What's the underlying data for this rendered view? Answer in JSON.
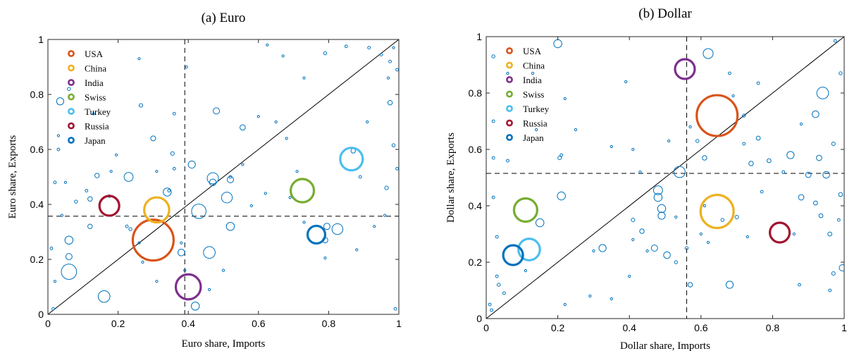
{
  "chart_data": [
    {
      "type": "scatter",
      "title": "(a) Euro",
      "xlabel": "Euro share, Imports",
      "ylabel": "Euro share, Exports",
      "xlim": [
        0,
        1
      ],
      "ylim": [
        0,
        1
      ],
      "xticks": [
        "0",
        "0.2",
        "0.4",
        "0.6",
        "0.8",
        "1"
      ],
      "yticks": [
        "0",
        "0.2",
        "0.4",
        "0.6",
        "0.8",
        "1"
      ],
      "ref_lines": {
        "vertical": 0.39,
        "horizontal": 0.357,
        "diagonal": true
      },
      "legend_placement": "top-left",
      "highlighted": [
        {
          "name": "USA",
          "color": "#D95319",
          "x": 0.3,
          "y": 0.27,
          "size": 1.0
        },
        {
          "name": "China",
          "color": "#EDB120",
          "x": 0.31,
          "y": 0.38,
          "size": 0.55
        },
        {
          "name": "India",
          "color": "#7E2F8E",
          "x": 0.4,
          "y": 0.1,
          "size": 0.55
        },
        {
          "name": "Swiss",
          "color": "#77AC30",
          "x": 0.725,
          "y": 0.45,
          "size": 0.5
        },
        {
          "name": "Turkey",
          "color": "#4DBEEE",
          "x": 0.865,
          "y": 0.565,
          "size": 0.48
        },
        {
          "name": "Russia",
          "color": "#A2142F",
          "x": 0.175,
          "y": 0.395,
          "size": 0.4
        },
        {
          "name": "Japan",
          "color": "#0072BD",
          "x": 0.765,
          "y": 0.29,
          "size": 0.34
        }
      ],
      "others": [
        [
          0.06,
          0.155,
          0.34
        ],
        [
          0.16,
          0.065,
          0.26
        ],
        [
          0.43,
          0.375,
          0.32
        ],
        [
          0.46,
          0.225,
          0.26
        ],
        [
          0.47,
          0.495,
          0.25
        ],
        [
          0.51,
          0.425,
          0.24
        ],
        [
          0.825,
          0.31,
          0.24
        ],
        [
          0.23,
          0.5,
          0.2
        ],
        [
          0.34,
          0.445,
          0.18
        ],
        [
          0.035,
          0.775,
          0.16
        ],
        [
          0.06,
          0.27,
          0.18
        ],
        [
          0.06,
          0.21,
          0.14
        ],
        [
          0.41,
          0.545,
          0.16
        ],
        [
          0.38,
          0.225,
          0.15
        ],
        [
          0.42,
          0.03,
          0.18
        ],
        [
          0.48,
          0.74,
          0.14
        ],
        [
          0.52,
          0.32,
          0.18
        ],
        [
          0.47,
          0.48,
          0.15
        ],
        [
          0.52,
          0.49,
          0.14
        ],
        [
          0.555,
          0.68,
          0.12
        ],
        [
          0.79,
          0.27,
          0.12
        ],
        [
          0.795,
          0.32,
          0.14
        ],
        [
          0.87,
          0.595,
          0.1
        ],
        [
          0.14,
          0.505,
          0.1
        ],
        [
          0.12,
          0.42,
          0.1
        ],
        [
          0.12,
          0.32,
          0.1
        ],
        [
          0.3,
          0.64,
          0.11
        ],
        [
          0.265,
          0.76,
          0.08
        ],
        [
          0.06,
          0.82,
          0.07
        ],
        [
          0.08,
          0.41,
          0.07
        ],
        [
          0.11,
          0.45,
          0.06
        ],
        [
          0.355,
          0.585,
          0.08
        ],
        [
          0.345,
          0.45,
          0.06
        ],
        [
          0.175,
          0.43,
          0.06
        ],
        [
          0.225,
          0.32,
          0.06
        ],
        [
          0.235,
          0.31,
          0.07
        ],
        [
          0.31,
          0.52,
          0.05
        ],
        [
          0.36,
          0.53,
          0.06
        ],
        [
          0.52,
          0.5,
          0.06
        ],
        [
          0.89,
          0.5,
          0.06
        ],
        [
          0.965,
          0.46,
          0.08
        ],
        [
          0.975,
          0.77,
          0.1
        ],
        [
          0.985,
          0.615,
          0.07
        ],
        [
          0.995,
          0.89,
          0.06
        ],
        [
          0.975,
          0.92,
          0.06
        ],
        [
          0.95,
          0.945,
          0.06
        ],
        [
          0.915,
          0.97,
          0.06
        ],
        [
          0.85,
          0.975,
          0.06
        ],
        [
          0.79,
          0.95,
          0.07
        ],
        [
          0.67,
          0.94,
          0.05
        ],
        [
          0.625,
          0.98,
          0.05
        ],
        [
          0.395,
          0.9,
          0.05
        ],
        [
          0.36,
          0.73,
          0.06
        ],
        [
          0.03,
          0.6,
          0.06
        ],
        [
          0.02,
          0.48,
          0.06
        ],
        [
          0.01,
          0.24,
          0.06
        ],
        [
          0.02,
          0.12,
          0.05
        ],
        [
          0.015,
          0.02,
          0.06
        ],
        [
          0.995,
          0.53,
          0.06
        ],
        [
          0.99,
          0.02,
          0.06
        ],
        [
          0.93,
          0.32,
          0.05
        ],
        [
          0.96,
          0.36,
          0.05
        ],
        [
          0.88,
          0.235,
          0.05
        ],
        [
          0.79,
          0.205,
          0.05
        ],
        [
          0.69,
          0.425,
          0.05
        ],
        [
          0.73,
          0.335,
          0.05
        ],
        [
          0.71,
          0.52,
          0.05
        ],
        [
          0.62,
          0.44,
          0.05
        ],
        [
          0.58,
          0.395,
          0.05
        ],
        [
          0.555,
          0.545,
          0.05
        ],
        [
          0.6,
          0.72,
          0.05
        ],
        [
          0.65,
          0.7,
          0.05
        ],
        [
          0.73,
          0.86,
          0.05
        ],
        [
          0.68,
          0.64,
          0.05
        ],
        [
          0.91,
          0.7,
          0.05
        ],
        [
          0.97,
          0.86,
          0.05
        ],
        [
          0.985,
          0.97,
          0.05
        ],
        [
          0.5,
          0.16,
          0.05
        ],
        [
          0.46,
          0.09,
          0.05
        ],
        [
          0.38,
          0.26,
          0.05
        ],
        [
          0.39,
          0.16,
          0.05
        ],
        [
          0.26,
          0.26,
          0.05
        ],
        [
          0.27,
          0.19,
          0.05
        ],
        [
          0.31,
          0.12,
          0.05
        ],
        [
          0.18,
          0.52,
          0.05
        ],
        [
          0.05,
          0.48,
          0.05
        ],
        [
          0.13,
          0.73,
          0.05
        ],
        [
          0.26,
          0.93,
          0.05
        ],
        [
          0.195,
          0.58,
          0.05
        ],
        [
          0.03,
          0.65,
          0.05
        ],
        [
          0.04,
          0.36,
          0.05
        ]
      ]
    },
    {
      "type": "scatter",
      "title": "(b) Dollar",
      "xlabel": "Dollar share, Imports",
      "ylabel": "Dollar share, Exports",
      "xlim": [
        0,
        1
      ],
      "ylim": [
        0,
        1
      ],
      "xticks": [
        "0",
        "0.2",
        "0.4",
        "0.6",
        "0.8",
        "1"
      ],
      "yticks": [
        "0",
        "0.2",
        "0.4",
        "0.6",
        "0.8",
        "1"
      ],
      "ref_lines": {
        "vertical": 0.56,
        "horizontal": 0.515,
        "diagonal": true
      },
      "legend_placement": "top-left",
      "highlighted": [
        {
          "name": "USA",
          "color": "#D95319",
          "x": 0.645,
          "y": 0.72,
          "size": 1.0
        },
        {
          "name": "China",
          "color": "#EDB120",
          "x": 0.645,
          "y": 0.38,
          "size": 0.78
        },
        {
          "name": "India",
          "color": "#7E2F8E",
          "x": 0.555,
          "y": 0.885,
          "size": 0.4
        },
        {
          "name": "Swiss",
          "color": "#77AC30",
          "x": 0.11,
          "y": 0.385,
          "size": 0.5
        },
        {
          "name": "Turkey",
          "color": "#4DBEEE",
          "x": 0.12,
          "y": 0.245,
          "size": 0.45
        },
        {
          "name": "Russia",
          "color": "#A2142F",
          "x": 0.82,
          "y": 0.305,
          "size": 0.4
        },
        {
          "name": "Japan",
          "color": "#0072BD",
          "x": 0.075,
          "y": 0.225,
          "size": 0.4
        }
      ],
      "others": [
        [
          0.62,
          0.94,
          0.22
        ],
        [
          0.94,
          0.8,
          0.26
        ],
        [
          0.54,
          0.52,
          0.25
        ],
        [
          0.2,
          0.975,
          0.18
        ],
        [
          0.21,
          0.435,
          0.18
        ],
        [
          0.15,
          0.34,
          0.18
        ],
        [
          0.325,
          0.25,
          0.16
        ],
        [
          0.48,
          0.455,
          0.2
        ],
        [
          0.48,
          0.43,
          0.18
        ],
        [
          0.49,
          0.39,
          0.18
        ],
        [
          0.49,
          0.365,
          0.16
        ],
        [
          0.47,
          0.25,
          0.14
        ],
        [
          0.505,
          0.225,
          0.15
        ],
        [
          0.68,
          0.12,
          0.16
        ],
        [
          0.85,
          0.58,
          0.16
        ],
        [
          0.92,
          0.725,
          0.15
        ],
        [
          0.95,
          0.51,
          0.15
        ],
        [
          0.9,
          0.51,
          0.12
        ],
        [
          0.88,
          0.43,
          0.12
        ],
        [
          0.93,
          0.57,
          0.12
        ],
        [
          0.57,
          0.12,
          0.1
        ],
        [
          0.61,
          0.57,
          0.1
        ],
        [
          0.74,
          0.55,
          0.1
        ],
        [
          0.76,
          0.64,
          0.09
        ],
        [
          0.79,
          0.56,
          0.09
        ],
        [
          0.92,
          0.41,
          0.09
        ],
        [
          0.935,
          0.365,
          0.09
        ],
        [
          0.96,
          0.3,
          0.09
        ],
        [
          0.995,
          0.18,
          0.14
        ],
        [
          0.99,
          0.44,
          0.09
        ],
        [
          0.435,
          0.31,
          0.1
        ],
        [
          0.41,
          0.35,
          0.08
        ],
        [
          0.205,
          0.57,
          0.08
        ],
        [
          0.21,
          0.58,
          0.06
        ],
        [
          0.59,
          0.63,
          0.07
        ],
        [
          0.97,
          0.62,
          0.08
        ],
        [
          0.97,
          0.16,
          0.08
        ],
        [
          0.7,
          0.36,
          0.08
        ],
        [
          0.66,
          0.35,
          0.07
        ],
        [
          0.56,
          0.25,
          0.07
        ],
        [
          0.53,
          0.2,
          0.07
        ],
        [
          0.875,
          0.12,
          0.06
        ],
        [
          0.96,
          0.1,
          0.06
        ],
        [
          0.985,
          0.35,
          0.06
        ],
        [
          0.99,
          0.87,
          0.07
        ],
        [
          0.76,
          0.835,
          0.06
        ],
        [
          0.68,
          0.87,
          0.06
        ],
        [
          0.72,
          0.62,
          0.06
        ],
        [
          0.72,
          0.72,
          0.07
        ],
        [
          0.83,
          0.52,
          0.06
        ],
        [
          0.77,
          0.45,
          0.06
        ],
        [
          0.02,
          0.93,
          0.07
        ],
        [
          0.02,
          0.7,
          0.06
        ],
        [
          0.02,
          0.57,
          0.06
        ],
        [
          0.02,
          0.43,
          0.06
        ],
        [
          0.03,
          0.29,
          0.06
        ],
        [
          0.03,
          0.15,
          0.06
        ],
        [
          0.035,
          0.12,
          0.07
        ],
        [
          0.05,
          0.09,
          0.06
        ],
        [
          0.01,
          0.05,
          0.06
        ],
        [
          0.015,
          0.03,
          0.06
        ],
        [
          0.06,
          0.56,
          0.06
        ],
        [
          0.22,
          0.78,
          0.05
        ],
        [
          0.25,
          0.67,
          0.05
        ],
        [
          0.35,
          0.61,
          0.05
        ],
        [
          0.41,
          0.6,
          0.05
        ],
        [
          0.43,
          0.52,
          0.05
        ],
        [
          0.3,
          0.24,
          0.05
        ],
        [
          0.22,
          0.05,
          0.05
        ],
        [
          0.29,
          0.08,
          0.05
        ],
        [
          0.35,
          0.07,
          0.05
        ],
        [
          0.14,
          0.67,
          0.05
        ],
        [
          0.13,
          0.87,
          0.05
        ],
        [
          0.06,
          0.87,
          0.05
        ],
        [
          0.11,
          0.17,
          0.05
        ],
        [
          0.41,
          0.28,
          0.05
        ],
        [
          0.61,
          0.4,
          0.05
        ],
        [
          0.62,
          0.27,
          0.05
        ],
        [
          0.73,
          0.29,
          0.05
        ],
        [
          0.86,
          0.3,
          0.05
        ],
        [
          0.88,
          0.69,
          0.05
        ],
        [
          0.975,
          0.985,
          0.06
        ],
        [
          0.69,
          0.79,
          0.05
        ],
        [
          0.51,
          0.63,
          0.05
        ],
        [
          0.39,
          0.84,
          0.05
        ],
        [
          0.57,
          0.68,
          0.05
        ],
        [
          0.6,
          0.3,
          0.05
        ],
        [
          0.53,
          0.36,
          0.05
        ],
        [
          0.45,
          0.24,
          0.05
        ],
        [
          0.4,
          0.15,
          0.05
        ]
      ]
    }
  ]
}
